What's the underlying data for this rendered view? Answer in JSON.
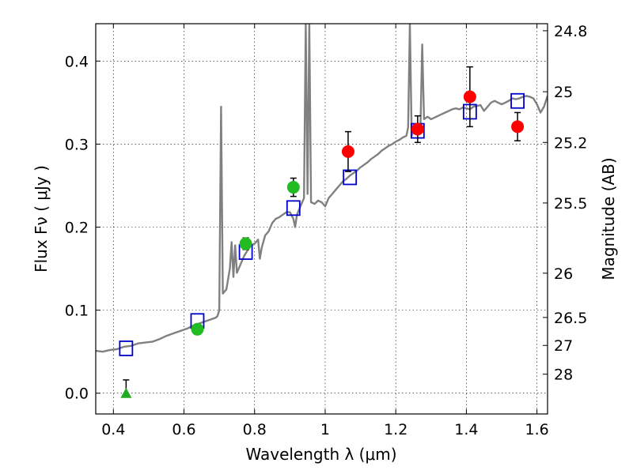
{
  "chart_data": {
    "type": "scatter",
    "xlabel": "Wavelength  λ (μm)",
    "ylabel": "Flux  Fν  ( μJy )",
    "ylabel_right": "Magnitude (AB)",
    "xlim": [
      0.35,
      1.63
    ],
    "ylim": [
      -0.025,
      0.445
    ],
    "grid": true,
    "x_ticks": [
      {
        "value": 0.4,
        "label": "0.4"
      },
      {
        "value": 0.6,
        "label": "0.6"
      },
      {
        "value": 0.8,
        "label": "0.8"
      },
      {
        "value": 1.0,
        "label": "1"
      },
      {
        "value": 1.2,
        "label": "1.2"
      },
      {
        "value": 1.4,
        "label": "1.4"
      },
      {
        "value": 1.6,
        "label": "1.6"
      }
    ],
    "y_ticks": [
      {
        "value": 0.0,
        "label": "0.0"
      },
      {
        "value": 0.1,
        "label": "0.1"
      },
      {
        "value": 0.2,
        "label": "0.2"
      },
      {
        "value": 0.3,
        "label": "0.3"
      },
      {
        "value": 0.4,
        "label": "0.4"
      }
    ],
    "right_ticks": [
      {
        "value": 24.8,
        "label": "24.8"
      },
      {
        "value": 25,
        "label": "25"
      },
      {
        "value": 25.2,
        "label": "25.2"
      },
      {
        "value": 25.5,
        "label": "25.5"
      },
      {
        "value": 26,
        "label": "26"
      },
      {
        "value": 26.5,
        "label": "26.5"
      },
      {
        "value": 27,
        "label": "27"
      },
      {
        "value": 28,
        "label": "28"
      }
    ],
    "series": [
      {
        "kind": "line",
        "color": "#808080",
        "points": [
          [
            0.35,
            0.051
          ],
          [
            0.37,
            0.05
          ],
          [
            0.39,
            0.052
          ],
          [
            0.41,
            0.053
          ],
          [
            0.43,
            0.056
          ],
          [
            0.45,
            0.057
          ],
          [
            0.47,
            0.06
          ],
          [
            0.49,
            0.061
          ],
          [
            0.51,
            0.062
          ],
          [
            0.53,
            0.065
          ],
          [
            0.55,
            0.069
          ],
          [
            0.57,
            0.072
          ],
          [
            0.59,
            0.075
          ],
          [
            0.61,
            0.078
          ],
          [
            0.63,
            0.082
          ],
          [
            0.65,
            0.085
          ],
          [
            0.67,
            0.088
          ],
          [
            0.69,
            0.091
          ],
          [
            0.695,
            0.093
          ],
          [
            0.7,
            0.1
          ],
          [
            0.705,
            0.345
          ],
          [
            0.71,
            0.12
          ],
          [
            0.72,
            0.125
          ],
          [
            0.73,
            0.15
          ],
          [
            0.735,
            0.182
          ],
          [
            0.74,
            0.14
          ],
          [
            0.745,
            0.178
          ],
          [
            0.75,
            0.145
          ],
          [
            0.76,
            0.155
          ],
          [
            0.77,
            0.165
          ],
          [
            0.78,
            0.172
          ],
          [
            0.79,
            0.178
          ],
          [
            0.8,
            0.18
          ],
          [
            0.81,
            0.185
          ],
          [
            0.815,
            0.162
          ],
          [
            0.82,
            0.175
          ],
          [
            0.83,
            0.19
          ],
          [
            0.84,
            0.195
          ],
          [
            0.85,
            0.205
          ],
          [
            0.86,
            0.21
          ],
          [
            0.87,
            0.212
          ],
          [
            0.88,
            0.215
          ],
          [
            0.89,
            0.218
          ],
          [
            0.9,
            0.218
          ],
          [
            0.91,
            0.21
          ],
          [
            0.915,
            0.2
          ],
          [
            0.92,
            0.215
          ],
          [
            0.93,
            0.225
          ],
          [
            0.94,
            0.235
          ],
          [
            0.945,
            0.445
          ],
          [
            0.95,
            0.24
          ],
          [
            0.955,
            0.445
          ],
          [
            0.96,
            0.23
          ],
          [
            0.97,
            0.228
          ],
          [
            0.98,
            0.232
          ],
          [
            0.99,
            0.23
          ],
          [
            1.0,
            0.225
          ],
          [
            1.01,
            0.235
          ],
          [
            1.02,
            0.24
          ],
          [
            1.03,
            0.245
          ],
          [
            1.04,
            0.25
          ],
          [
            1.05,
            0.255
          ],
          [
            1.06,
            0.258
          ],
          [
            1.07,
            0.262
          ],
          [
            1.08,
            0.265
          ],
          [
            1.09,
            0.268
          ],
          [
            1.1,
            0.272
          ],
          [
            1.11,
            0.275
          ],
          [
            1.12,
            0.278
          ],
          [
            1.13,
            0.282
          ],
          [
            1.14,
            0.285
          ],
          [
            1.15,
            0.288
          ],
          [
            1.16,
            0.292
          ],
          [
            1.17,
            0.295
          ],
          [
            1.18,
            0.298
          ],
          [
            1.19,
            0.3
          ],
          [
            1.2,
            0.303
          ],
          [
            1.21,
            0.305
          ],
          [
            1.22,
            0.308
          ],
          [
            1.23,
            0.31
          ],
          [
            1.235,
            0.32
          ],
          [
            1.24,
            0.445
          ],
          [
            1.245,
            0.31
          ],
          [
            1.25,
            0.315
          ],
          [
            1.26,
            0.32
          ],
          [
            1.265,
            0.315
          ],
          [
            1.27,
            0.32
          ],
          [
            1.275,
            0.42
          ],
          [
            1.28,
            0.33
          ],
          [
            1.29,
            0.333
          ],
          [
            1.3,
            0.33
          ],
          [
            1.31,
            0.332
          ],
          [
            1.32,
            0.334
          ],
          [
            1.33,
            0.336
          ],
          [
            1.34,
            0.338
          ],
          [
            1.35,
            0.34
          ],
          [
            1.36,
            0.342
          ],
          [
            1.37,
            0.343
          ],
          [
            1.38,
            0.342
          ],
          [
            1.39,
            0.344
          ],
          [
            1.4,
            0.343
          ],
          [
            1.41,
            0.342
          ],
          [
            1.42,
            0.345
          ],
          [
            1.43,
            0.346
          ],
          [
            1.44,
            0.347
          ],
          [
            1.45,
            0.34
          ],
          [
            1.46,
            0.345
          ],
          [
            1.47,
            0.35
          ],
          [
            1.48,
            0.352
          ],
          [
            1.49,
            0.35
          ],
          [
            1.5,
            0.348
          ],
          [
            1.51,
            0.35
          ],
          [
            1.52,
            0.352
          ],
          [
            1.53,
            0.355
          ],
          [
            1.54,
            0.354
          ],
          [
            1.55,
            0.355
          ],
          [
            1.56,
            0.357
          ],
          [
            1.57,
            0.358
          ],
          [
            1.58,
            0.357
          ],
          [
            1.59,
            0.355
          ],
          [
            1.6,
            0.348
          ],
          [
            1.61,
            0.338
          ],
          [
            1.62,
            0.345
          ],
          [
            1.63,
            0.358
          ]
        ]
      },
      {
        "kind": "squares",
        "color": "#0000cc",
        "points": [
          [
            0.436,
            0.054
          ],
          [
            0.638,
            0.087
          ],
          [
            0.775,
            0.17
          ],
          [
            0.91,
            0.223
          ],
          [
            1.07,
            0.26
          ],
          [
            1.262,
            0.316
          ],
          [
            1.41,
            0.339
          ],
          [
            1.545,
            0.352
          ]
        ]
      },
      {
        "kind": "triangle",
        "color": "#22aa22",
        "points": [
          {
            "x": 0.436,
            "y": 0.0,
            "err": 0.016
          }
        ]
      },
      {
        "kind": "circles",
        "color": "#22bb22",
        "points": [
          {
            "x": 0.638,
            "y": 0.077,
            "err": 0.006
          },
          {
            "x": 0.775,
            "y": 0.18,
            "err": 0.007
          },
          {
            "x": 0.91,
            "y": 0.248,
            "err": 0.011
          }
        ]
      },
      {
        "kind": "circles",
        "color": "#ff0000",
        "points": [
          {
            "x": 1.065,
            "y": 0.291,
            "err": 0.024
          },
          {
            "x": 1.262,
            "y": 0.318,
            "err": 0.016
          },
          {
            "x": 1.41,
            "y": 0.357,
            "err": 0.036
          },
          {
            "x": 1.545,
            "y": 0.321,
            "err": 0.017
          }
        ]
      }
    ]
  }
}
